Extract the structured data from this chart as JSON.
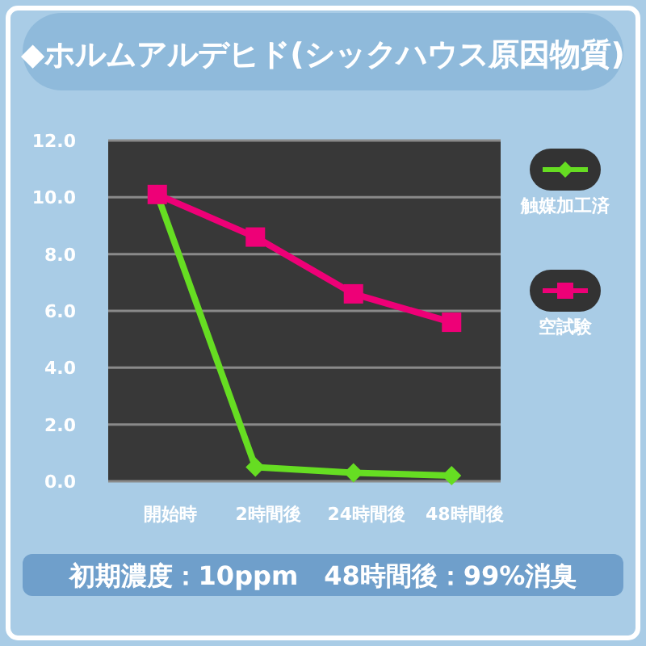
{
  "chart_data": {
    "type": "line",
    "title": "◆ホルムアルデヒド(シックハウス原因物質)",
    "categories": [
      "開始時",
      "2時間後",
      "24時間後",
      "48時間後"
    ],
    "series": [
      {
        "name": "触媒加工済",
        "color": "#66dd22",
        "marker": "diamond",
        "values": [
          10.1,
          0.5,
          0.3,
          0.2
        ]
      },
      {
        "name": "空試験",
        "color": "#ee0077",
        "marker": "square",
        "values": [
          10.1,
          8.6,
          6.6,
          5.6
        ]
      }
    ],
    "ylim": [
      0,
      12
    ],
    "yticks": [
      {
        "value": 0,
        "label": "0.0"
      },
      {
        "value": 2,
        "label": "2.0"
      },
      {
        "value": 4,
        "label": "4.0"
      },
      {
        "value": 6,
        "label": "6.0"
      },
      {
        "value": 8,
        "label": "8.0"
      },
      {
        "value": 10,
        "label": "10.0"
      },
      {
        "value": 12,
        "label": "12.0"
      }
    ],
    "grid": "y",
    "legend": "right",
    "annotations": [
      "初期濃度：10ppm　48時間後：99%消臭"
    ]
  }
}
